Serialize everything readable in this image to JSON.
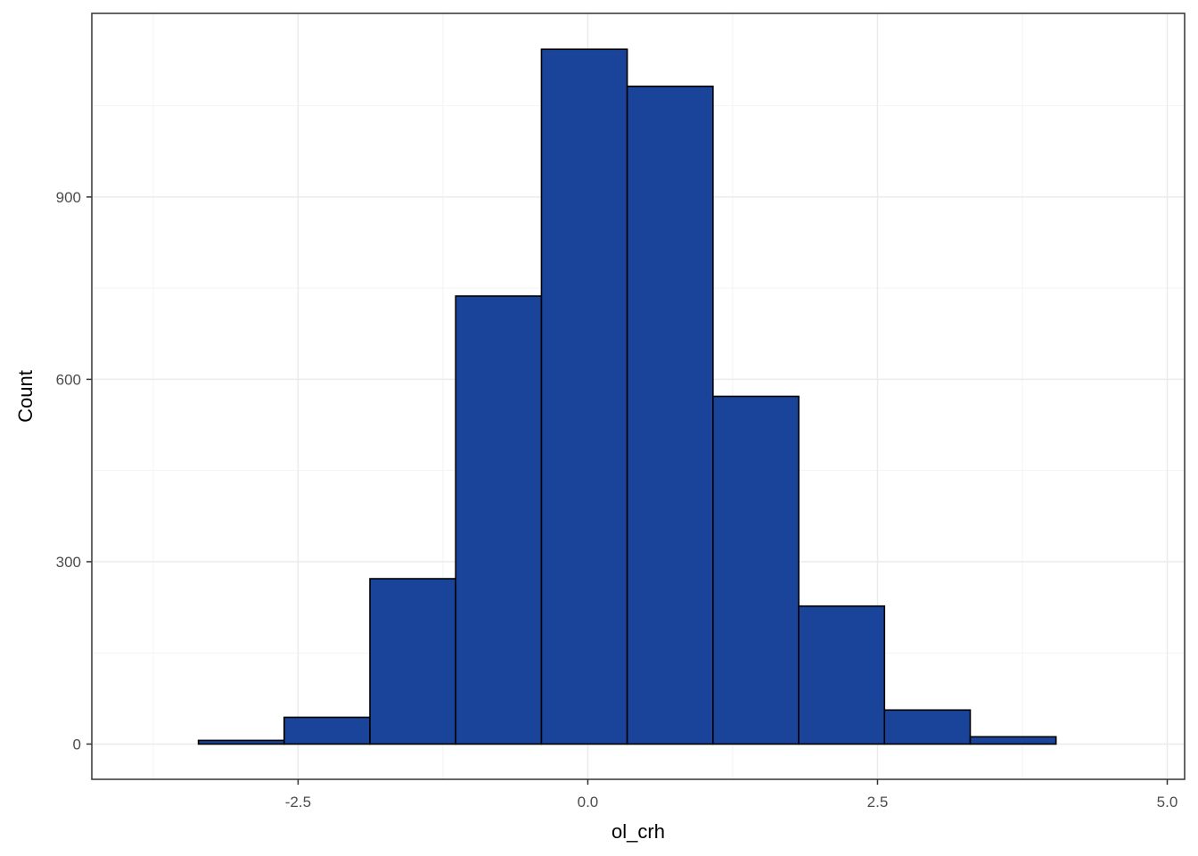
{
  "chart_data": {
    "type": "bar",
    "title": "",
    "xlabel": "ol_crh",
    "ylabel": "Count",
    "xlim": [
      -4.28,
      5.15
    ],
    "ylim": [
      -58,
      1202
    ],
    "x_ticks": [
      -2.5,
      0.0,
      2.5,
      5.0
    ],
    "x_tick_labels": [
      "-2.5",
      "0.0",
      "2.5",
      "5.0"
    ],
    "x_minor_ticks": [
      -3.75,
      -1.25,
      1.25,
      3.75
    ],
    "y_ticks": [
      0,
      300,
      600,
      900
    ],
    "y_tick_labels": [
      "0",
      "300",
      "600",
      "900"
    ],
    "y_minor_ticks": [
      150,
      450,
      750,
      1050
    ],
    "grid": true,
    "bin_edges": [
      -4.1,
      -3.36,
      -2.62,
      -1.88,
      -1.14,
      -0.4,
      0.34,
      1.08,
      1.82,
      2.56,
      3.3,
      4.04,
      4.78
    ],
    "values": [
      0,
      6,
      44,
      272,
      737,
      1143,
      1082,
      572,
      227,
      56,
      12,
      0
    ],
    "colors": {
      "bar_fill": "#19449A",
      "bar_stroke": "#000000",
      "grid_major": "#EBEBEB",
      "grid_minor": "#F3F3F3",
      "panel_border": "#333333"
    }
  }
}
